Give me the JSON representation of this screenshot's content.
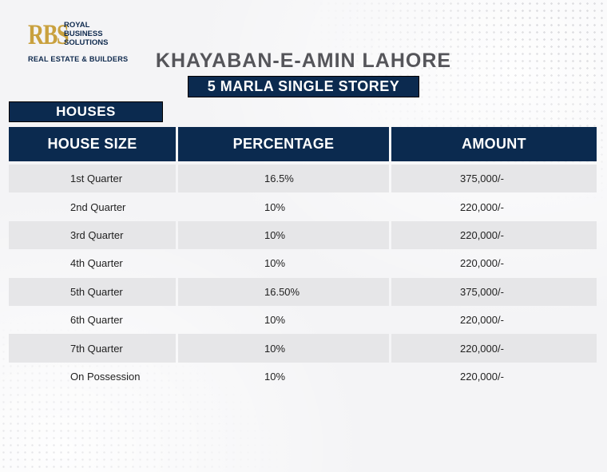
{
  "logo": {
    "mark": "RBS",
    "line1": "ROYAL",
    "line2": "BUSINESS",
    "line3": "SOLUTIONS",
    "tagline": "REAL ESTATE & BUILDERS"
  },
  "title": "KHAYABAN-E-AMIN LAHORE",
  "subtitle": "5 MARLA SINGLE STOREY",
  "section": "HOUSES",
  "colors": {
    "navy": "#0b2a4f",
    "gold": "#c9a13e",
    "row_shade": "#e6e6e8"
  },
  "table": {
    "headers": [
      "HOUSE SIZE",
      "PERCENTAGE",
      "AMOUNT"
    ],
    "rows": [
      [
        "1st Quarter",
        "16.5%",
        "375,000/-"
      ],
      [
        "2nd Quarter",
        "10%",
        "220,000/-"
      ],
      [
        "3rd Quarter",
        "10%",
        "220,000/-"
      ],
      [
        "4th Quarter",
        "10%",
        "220,000/-"
      ],
      [
        "5th Quarter",
        "16.50%",
        "375,000/-"
      ],
      [
        "6th Quarter",
        "10%",
        "220,000/-"
      ],
      [
        "7th Quarter",
        "10%",
        "220,000/-"
      ],
      [
        "On Possession",
        "10%",
        "220,000/-"
      ]
    ]
  }
}
